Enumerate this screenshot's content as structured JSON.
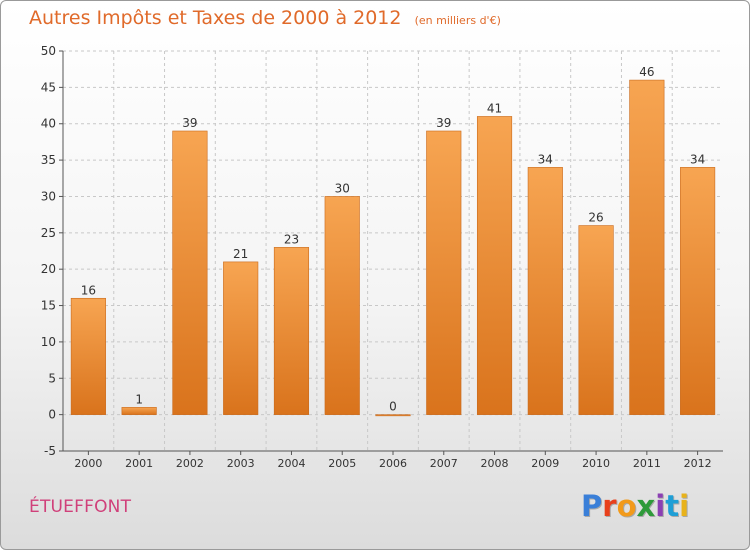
{
  "header": {
    "title": "Autres Impôts et Taxes de 2000 à 2012",
    "unit": "(en milliers d'€)"
  },
  "footer": {
    "commune": "ÉTUEFFONT",
    "logo_letters": [
      "P",
      "r",
      "o",
      "x",
      "i",
      "t",
      "i"
    ],
    "logo_colors": [
      "#3a7fd8",
      "#e8401c",
      "#f29a1a",
      "#2e9a3a",
      "#8b3fb3",
      "#1f9fd6",
      "#e8b21a"
    ]
  },
  "colors": {
    "bar_light": "#f7a552",
    "bar_dark": "#d9731c",
    "grid": "#c8c8c8",
    "axis_text": "#333333",
    "title": "#e06a2a"
  },
  "chart_data": {
    "type": "bar",
    "categories": [
      "2000",
      "2001",
      "2002",
      "2003",
      "2004",
      "2005",
      "2006",
      "2007",
      "2008",
      "2009",
      "2010",
      "2011",
      "2012"
    ],
    "values": [
      16,
      1,
      39,
      21,
      23,
      30,
      0,
      39,
      41,
      34,
      26,
      46,
      34
    ],
    "data_labels": [
      "16",
      "1",
      "39",
      "21",
      "23",
      "30",
      "0",
      "39",
      "41",
      "34",
      "26",
      "46",
      "34"
    ],
    "yticks": [
      "-5",
      "0",
      "5",
      "10",
      "15",
      "20",
      "25",
      "30",
      "35",
      "40",
      "45",
      "50"
    ],
    "ylim": [
      -5,
      50
    ],
    "grid": "horizontal dashed"
  }
}
